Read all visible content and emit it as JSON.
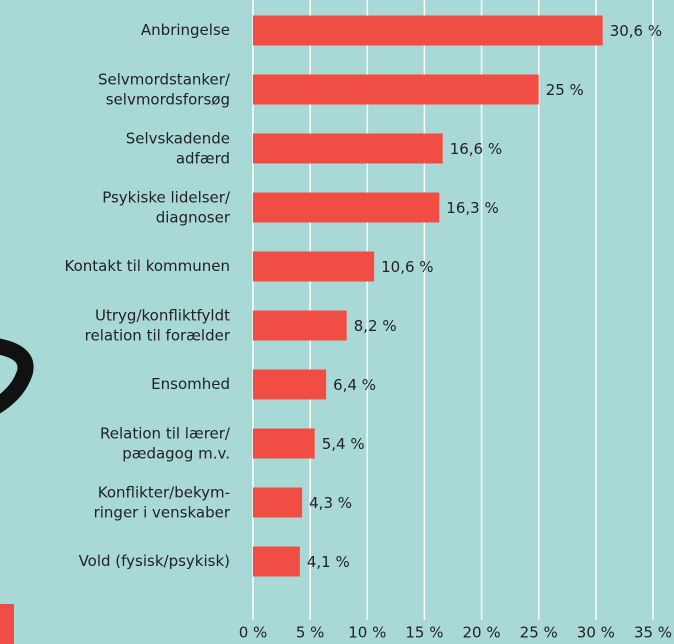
{
  "chart_data": {
    "type": "hbar",
    "categories": [
      "Anbringelse",
      "Selvmordstanker/\nselvmordsforsøg",
      "Selvskadende\nadfærd",
      "Psykiske lidelser/\ndiagnoser",
      "Kontakt til kommunen",
      "Utryg/konfliktfyldt\nrelation til forælder",
      "Ensomhed",
      "Relation til lærer/\npædagog m.v.",
      "Konflikter/bekym-\nringer i venskaber",
      "Vold (fysisk/psykisk)"
    ],
    "values": [
      30.6,
      25,
      16.6,
      16.3,
      10.6,
      8.2,
      6.4,
      5.4,
      4.3,
      4.1
    ],
    "value_labels": [
      "30,6 %",
      "25 %",
      "16,6 %",
      "16,3 %",
      "10,6 %",
      "8,2 %",
      "6,4 %",
      "5,4 %",
      "4,3 %",
      "4,1 %"
    ],
    "color": "#f04e45",
    "xlim": [
      0,
      35
    ],
    "xticks": [
      {
        "value": 0,
        "label": "0 %"
      },
      {
        "value": 5,
        "label": "5 %"
      },
      {
        "value": 10,
        "label": "10 %"
      },
      {
        "value": 15,
        "label": "15 %"
      },
      {
        "value": 20,
        "label": "20 %"
      },
      {
        "value": 25,
        "label": "25 %"
      },
      {
        "value": 30,
        "label": "30 %"
      },
      {
        "value": 35,
        "label": "35 %"
      }
    ],
    "grid": true
  }
}
